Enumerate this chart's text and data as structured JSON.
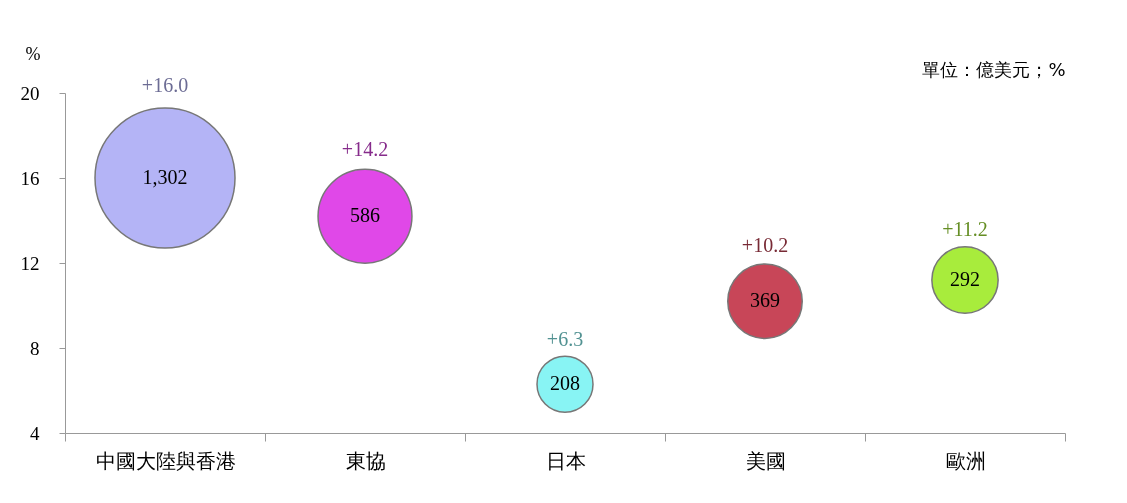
{
  "chart_data": {
    "type": "bubble",
    "ylabel": "%",
    "categories": [
      "中國大陸與香港",
      "東協",
      "日本",
      "美國",
      "歐洲"
    ],
    "values": [
      16.0,
      14.2,
      6.3,
      10.2,
      11.2
    ],
    "sizes": [
      1,
      0.45,
      0.16,
      0.283,
      0.224
    ],
    "colors": [
      "#b4b4f6",
      "#e048e8",
      "#88f4f4",
      "#c84658",
      "#a8ec3c"
    ],
    "value_labels": [
      "+16.0",
      "+14.2",
      "+6.3",
      "+10.2",
      "+11.2"
    ],
    "ylim": [
      4,
      20
    ],
    "yticks": [
      4,
      8,
      12,
      16,
      20
    ],
    "grid": false,
    "legend": false,
    "annotations": [
      "單位：億美元；%",
      {
        "text": "1,302",
        "x": "中國大陸與香港",
        "y": 16.0
      },
      {
        "text": "586",
        "x": "東協",
        "y": 14.2
      },
      {
        "text": "208",
        "x": "日本",
        "y": 6.3
      },
      {
        "text": "369",
        "x": "美國",
        "y": 10.2
      },
      {
        "text": "292",
        "x": "歐洲",
        "y": 11.2
      }
    ]
  }
}
